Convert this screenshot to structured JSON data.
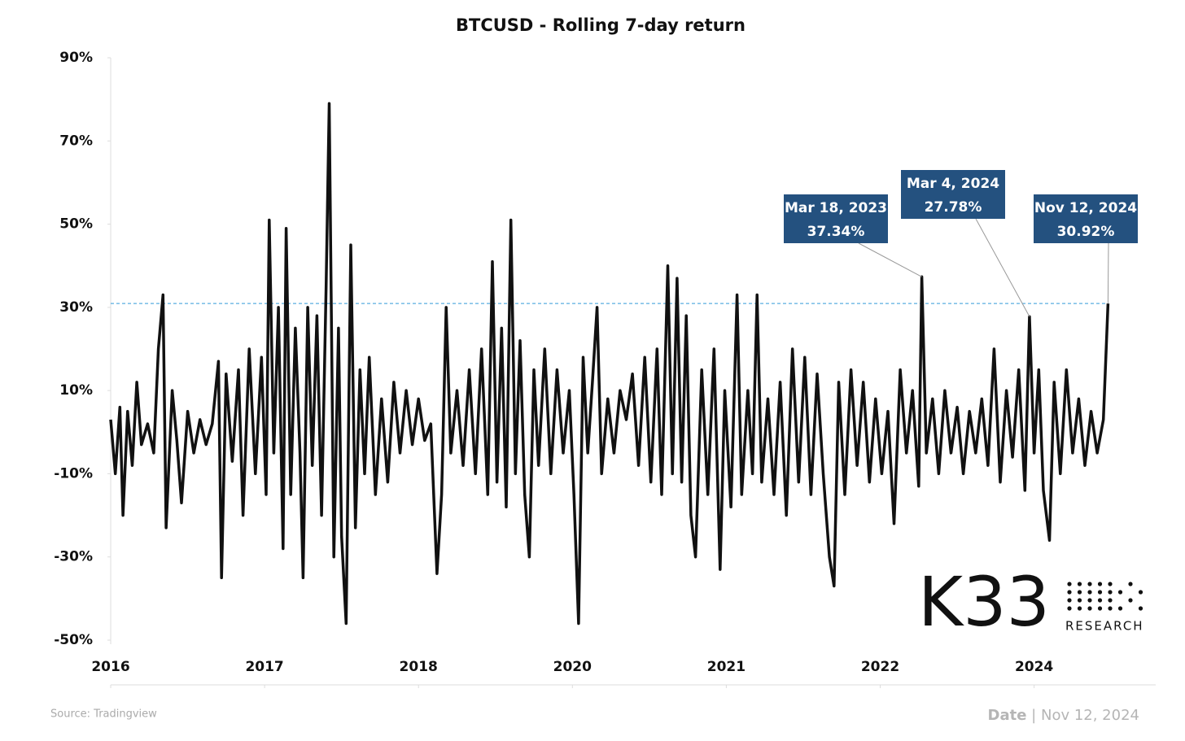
{
  "chart_data": {
    "type": "line",
    "title": "BTCUSD - Rolling 7-day return",
    "color": "#111111",
    "xlim": [
      0,
      6.79
    ],
    "xticks": [
      {
        "value": 0,
        "label": "2016"
      },
      {
        "value": 1,
        "label": "2017"
      },
      {
        "value": 2,
        "label": "2018"
      },
      {
        "value": 3,
        "label": "2020"
      },
      {
        "value": 4,
        "label": "2021"
      },
      {
        "value": 5,
        "label": "2022"
      },
      {
        "value": 6,
        "label": "2024"
      }
    ],
    "ylim": [
      -50,
      90
    ],
    "yticks": [
      {
        "value": -50,
        "label": "-50%"
      },
      {
        "value": -30,
        "label": "-30%"
      },
      {
        "value": -10,
        "label": "-10%"
      },
      {
        "value": 10,
        "label": "10%"
      },
      {
        "value": 30,
        "label": "30%"
      },
      {
        "value": 50,
        "label": "50%"
      },
      {
        "value": 70,
        "label": "70%"
      },
      {
        "value": 90,
        "label": "90%"
      }
    ],
    "x": [
      0,
      0.03,
      0.06,
      0.08,
      0.11,
      0.14,
      0.17,
      0.2,
      0.24,
      0.28,
      0.31,
      0.34,
      0.36,
      0.4,
      0.43,
      0.46,
      0.5,
      0.54,
      0.58,
      0.62,
      0.66,
      0.7,
      0.72,
      0.75,
      0.79,
      0.83,
      0.86,
      0.9,
      0.94,
      0.98,
      1.01,
      1.03,
      1.06,
      1.09,
      1.12,
      1.14,
      1.17,
      1.2,
      1.23,
      1.25,
      1.28,
      1.31,
      1.34,
      1.37,
      1.4,
      1.42,
      1.45,
      1.48,
      1.5,
      1.53,
      1.56,
      1.59,
      1.62,
      1.65,
      1.68,
      1.72,
      1.76,
      1.8,
      1.84,
      1.88,
      1.92,
      1.96,
      2,
      2.04,
      2.08,
      2.12,
      2.15,
      2.18,
      2.21,
      2.25,
      2.29,
      2.33,
      2.37,
      2.41,
      2.45,
      2.48,
      2.51,
      2.54,
      2.57,
      2.6,
      2.63,
      2.66,
      2.69,
      2.72,
      2.75,
      2.78,
      2.82,
      2.86,
      2.9,
      2.94,
      2.98,
      3.01,
      3.04,
      3.07,
      3.1,
      3.13,
      3.16,
      3.19,
      3.23,
      3.27,
      3.31,
      3.35,
      3.39,
      3.43,
      3.47,
      3.51,
      3.55,
      3.58,
      3.62,
      3.65,
      3.68,
      3.71,
      3.74,
      3.77,
      3.8,
      3.84,
      3.88,
      3.92,
      3.96,
      3.99,
      4.03,
      4.07,
      4.1,
      4.14,
      4.17,
      4.2,
      4.23,
      4.27,
      4.31,
      4.35,
      4.39,
      4.43,
      4.47,
      4.51,
      4.55,
      4.59,
      4.63,
      4.67,
      4.7,
      4.73,
      4.77,
      4.81,
      4.85,
      4.89,
      4.93,
      4.97,
      5.01,
      5.05,
      5.09,
      5.13,
      5.17,
      5.21,
      5.25,
      5.27,
      5.3,
      5.34,
      5.38,
      5.42,
      5.46,
      5.5,
      5.54,
      5.58,
      5.62,
      5.66,
      5.7,
      5.74,
      5.78,
      5.82,
      5.86,
      5.9,
      5.94,
      5.97,
      6,
      6.03,
      6.06,
      6.1,
      6.13,
      6.17,
      6.21,
      6.25,
      6.29,
      6.33,
      6.37,
      6.41,
      6.45,
      6.48
    ],
    "values": [
      3,
      -10,
      6,
      -20,
      5,
      -8,
      12,
      -3,
      2,
      -5,
      20,
      33,
      -23,
      10,
      -2,
      -17,
      5,
      -5,
      3,
      -3,
      2,
      17,
      -35,
      14,
      -7,
      15,
      -20,
      20,
      -10,
      18,
      -15,
      51,
      -5,
      30,
      -28,
      49,
      -15,
      25,
      -5,
      -35,
      30,
      -8,
      28,
      -20,
      35,
      79,
      -30,
      25,
      -25,
      -46,
      45,
      -23,
      15,
      -10,
      18,
      -15,
      8,
      -12,
      12,
      -5,
      10,
      -3,
      8,
      -2,
      2,
      -34,
      -15,
      30,
      -5,
      10,
      -8,
      15,
      -10,
      20,
      -15,
      41,
      -12,
      25,
      -18,
      51,
      -10,
      22,
      -15,
      -30,
      15,
      -8,
      20,
      -10,
      15,
      -5,
      10,
      -15,
      -46,
      18,
      -5,
      12,
      30,
      -10,
      8,
      -5,
      10,
      3,
      14,
      -8,
      18,
      -12,
      20,
      -15,
      40,
      -10,
      37,
      -12,
      28,
      -20,
      -30,
      15,
      -15,
      20,
      -33,
      10,
      -18,
      33,
      -15,
      10,
      -10,
      33,
      -12,
      8,
      -15,
      12,
      -20,
      20,
      -12,
      18,
      -15,
      14,
      -10,
      -30,
      -37,
      12,
      -15,
      15,
      -8,
      12,
      -12,
      8,
      -10,
      5,
      -22,
      15,
      -5,
      10,
      -13,
      37.34,
      -5,
      8,
      -10,
      10,
      -5,
      6,
      -10,
      5,
      -5,
      8,
      -8,
      20,
      -12,
      10,
      -6,
      15,
      -14,
      27.78,
      -5,
      15,
      -14,
      -26,
      12,
      -10,
      15,
      -5,
      8,
      -8,
      5,
      -5,
      3,
      30.92
    ],
    "reference_line": {
      "value": 30.92,
      "color": "#5aaee0"
    },
    "annotations": [
      {
        "date": "Mar 18, 2023",
        "label": "37.34%",
        "value": 37.34,
        "x": 5.27
      },
      {
        "date": "Mar 4, 2024",
        "label": "27.78%",
        "value": 27.78,
        "x": 5.97
      },
      {
        "date": "Nov 12, 2024",
        "label": "30.92%",
        "value": 30.92,
        "x": 6.48
      }
    ],
    "annotation_color": "#24517f",
    "source": "Source:  Tradingview",
    "date_label": "Date",
    "separator": "|",
    "date": "Nov 12, 2024",
    "logo": "K33",
    "logo_subtitle": "RESEARCH"
  }
}
